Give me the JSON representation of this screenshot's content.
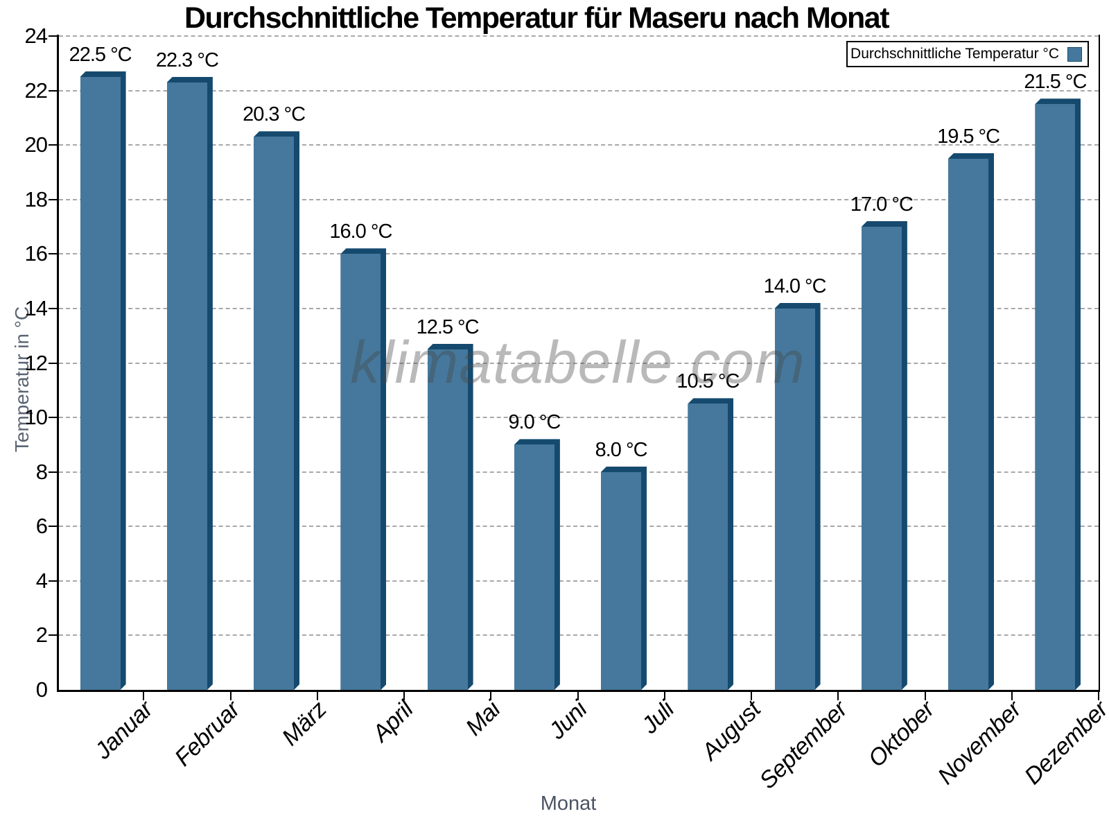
{
  "title": "Durchschnittliche Temperatur für Maseru nach Monat",
  "legend": {
    "label": "Durchschnittliche Temperatur °C"
  },
  "watermark": "klimatabelle.com",
  "axes": {
    "y_title": "Temperatur in °C",
    "x_title": "Monat"
  },
  "colors": {
    "bar_face": "#45789C",
    "bar_shadow": "#154A6E",
    "gridline": "#a8a8a8",
    "axis_text_gray": "#5a6573"
  },
  "chart_data": {
    "type": "bar",
    "title": "Durchschnittliche Temperatur für Maseru nach Monat",
    "categories": [
      "Januar",
      "Februar",
      "März",
      "April",
      "Mai",
      "Juni",
      "Juli",
      "August",
      "September",
      "Oktober",
      "November",
      "Dezember"
    ],
    "values": [
      22.5,
      22.3,
      20.3,
      16.0,
      12.5,
      9.0,
      8.0,
      10.5,
      14.0,
      17.0,
      19.5,
      21.5
    ],
    "value_labels": [
      "22.5 °C",
      "22.3 °C",
      "20.3 °C",
      "16.0 °C",
      "12.5 °C",
      "9.0 °C",
      "8.0 °C",
      "10.5 °C",
      "14.0 °C",
      "17.0 °C",
      "19.5 °C",
      "21.5 °C"
    ],
    "series_name": "Durchschnittliche Temperatur °C",
    "xlabel": "Monat",
    "ylabel": "Temperatur in °C",
    "ylim": [
      0,
      24
    ],
    "ytick_step": 2,
    "grid": "horizontal-dotted",
    "legend_position": "top-right",
    "bar_style": "3d-extruded"
  }
}
